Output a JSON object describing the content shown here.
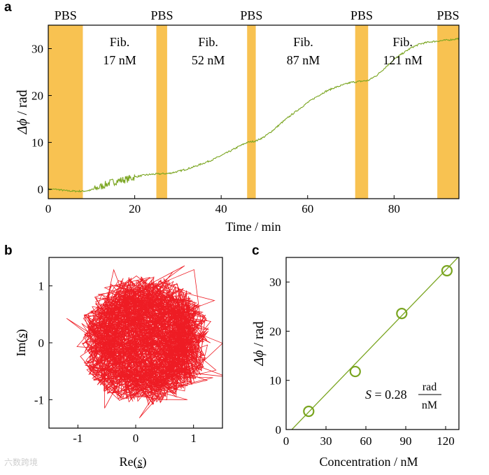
{
  "watermark": "六数跨境",
  "colors": {
    "pbs": "#f7b733",
    "trace": "#7aa520",
    "circle": "#ee1c24",
    "line": "#7aa520",
    "axis": "#000000"
  },
  "chart_data": [
    {
      "panel": "a",
      "type": "line",
      "xlabel": "Time / min",
      "ylabel_symbol": "Δϕ",
      "ylabel_unit": " / rad",
      "xlim": [
        0,
        95
      ],
      "ylim": [
        -2,
        35
      ],
      "xticks": [
        0,
        20,
        40,
        60,
        80
      ],
      "yticks": [
        0,
        10,
        20,
        30
      ],
      "pbs_bands": [
        [
          0,
          8
        ],
        [
          25,
          27.5
        ],
        [
          46,
          48
        ],
        [
          71,
          74
        ],
        [
          90,
          95
        ]
      ],
      "region_labels": [
        {
          "text": "PBS",
          "x": 4.0
        },
        {
          "text": "PBS",
          "x": 26.3
        },
        {
          "text": "PBS",
          "x": 47.0
        },
        {
          "text": "PBS",
          "x": 72.5
        },
        {
          "text": "PBS",
          "x": 92.5
        }
      ],
      "fib_labels": [
        {
          "line1": "Fib.",
          "line2": "17 nM",
          "x": 16.5
        },
        {
          "line1": "Fib.",
          "line2": "52 nM",
          "x": 37.0
        },
        {
          "line1": "Fib.",
          "line2": "87 nM",
          "x": 59.0
        },
        {
          "line1": "Fib.",
          "line2": "121 nM",
          "x": 82.0
        }
      ],
      "series": [
        {
          "name": "Δϕ",
          "x": [
            0,
            2,
            4,
            6,
            8,
            10,
            12,
            14,
            16,
            18,
            20,
            22,
            24,
            26,
            28,
            30,
            32,
            34,
            36,
            38,
            40,
            42,
            44,
            46,
            48,
            50,
            52,
            54,
            56,
            58,
            60,
            62,
            64,
            66,
            68,
            70,
            72,
            74,
            76,
            78,
            80,
            82,
            84,
            86,
            88,
            90,
            92,
            94,
            95
          ],
          "y": [
            0,
            0,
            -0.3,
            -0.4,
            -0.4,
            -0.2,
            0.5,
            1.3,
            1.8,
            2.1,
            2.6,
            3.0,
            3.2,
            3.3,
            3.4,
            3.8,
            4.3,
            4.9,
            5.6,
            6.3,
            7.2,
            8.1,
            9.1,
            10.0,
            10.3,
            11.2,
            12.6,
            14.2,
            15.7,
            17.1,
            18.5,
            19.7,
            20.8,
            21.6,
            22.2,
            22.8,
            23.0,
            23.2,
            24.3,
            26.0,
            27.7,
            29.0,
            30.2,
            31.0,
            31.4,
            31.6,
            31.8,
            32.0,
            32.2
          ]
        }
      ]
    },
    {
      "panel": "b",
      "type": "scatter",
      "xlabel_pre": "Re(",
      "xlabel_sym": "s",
      "xlabel_post": ")",
      "ylabel_pre": "Im(",
      "ylabel_sym": "s",
      "ylabel_post": ")",
      "xlim": [
        -1.5,
        1.5
      ],
      "ylim": [
        -1.5,
        1.5
      ],
      "xticks": [
        -1,
        0,
        1
      ],
      "yticks": [
        -1,
        0,
        1
      ],
      "ring": {
        "center": [
          0.15,
          0.05
        ],
        "radius": 0.9,
        "noise": 0.25,
        "points": 900
      }
    },
    {
      "panel": "c",
      "type": "scatter",
      "xlabel": "Concentration / nM",
      "ylabel_symbol": "Δϕ",
      "ylabel_unit": " / rad",
      "xlim": [
        0,
        130
      ],
      "ylim": [
        0,
        35
      ],
      "xticks": [
        0,
        30,
        60,
        90,
        120
      ],
      "yticks": [
        0,
        10,
        20,
        30
      ],
      "x": [
        17,
        52,
        87,
        121
      ],
      "y": [
        3.7,
        11.8,
        23.6,
        32.3
      ],
      "fit": {
        "slope": 0.28,
        "intercept": -1.2
      },
      "annotation": {
        "sym": "S",
        "eq": " = 0.28",
        "num": "rad",
        "den": "nM"
      }
    }
  ],
  "panel_letters": [
    "a",
    "b",
    "c"
  ]
}
